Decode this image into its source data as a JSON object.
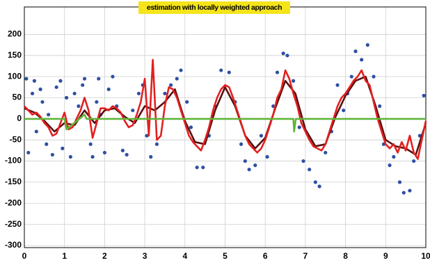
{
  "chart_data": {
    "type": "line",
    "title": "estimation with locally weighted approach",
    "xlim": [
      0,
      10
    ],
    "xticks": [
      0,
      1,
      2,
      3,
      4,
      5,
      6,
      7,
      8,
      9,
      10
    ],
    "ylim": [
      -305,
      265
    ],
    "yticks": [
      -300,
      -250,
      -200,
      -150,
      -100,
      -50,
      0,
      50,
      100,
      150,
      200
    ],
    "grid": true,
    "series": [
      {
        "mode": "markers",
        "color": "#2e4fa3",
        "x": [
          0.05,
          0.1,
          0.2,
          0.25,
          0.3,
          0.4,
          0.45,
          0.55,
          0.6,
          0.7,
          0.8,
          0.9,
          0.95,
          1.05,
          1.15,
          1.25,
          1.35,
          1.45,
          1.5,
          1.65,
          1.7,
          1.8,
          1.85,
          1.9,
          2.0,
          2.1,
          2.2,
          2.3,
          2.45,
          2.55,
          2.7,
          2.85,
          2.95,
          3.05,
          3.15,
          3.3,
          3.5,
          3.65,
          3.8,
          3.9,
          4.05,
          4.15,
          4.3,
          4.45,
          4.6,
          4.75,
          4.9,
          5.1,
          5.25,
          5.4,
          5.5,
          5.6,
          5.75,
          5.9,
          6.05,
          6.2,
          6.3,
          6.45,
          6.55,
          6.7,
          6.85,
          6.95,
          7.1,
          7.25,
          7.35,
          7.5,
          7.65,
          7.8,
          7.95,
          8.05,
          8.15,
          8.25,
          8.4,
          8.55,
          8.7,
          8.85,
          8.95,
          9.1,
          9.2,
          9.35,
          9.45,
          9.6,
          9.7,
          9.85,
          9.95
        ],
        "values": [
          95,
          -80,
          60,
          90,
          -30,
          70,
          40,
          -60,
          10,
          -85,
          75,
          90,
          -70,
          50,
          -90,
          60,
          30,
          80,
          95,
          -60,
          -90,
          40,
          95,
          10,
          -80,
          70,
          100,
          30,
          -75,
          -85,
          20,
          60,
          80,
          -40,
          -90,
          -60,
          60,
          80,
          95,
          115,
          40,
          -20,
          -115,
          -115,
          -40,
          30,
          115,
          110,
          40,
          -60,
          -100,
          -120,
          -110,
          -40,
          -90,
          30,
          110,
          155,
          150,
          90,
          -20,
          -100,
          -120,
          -150,
          -160,
          -80,
          -30,
          80,
          20,
          60,
          100,
          160,
          140,
          175,
          100,
          30,
          -60,
          -110,
          -90,
          -150,
          -175,
          -170,
          -100,
          -40,
          55
        ]
      },
      {
        "mode": "line",
        "color": "#5a1010",
        "x": [
          0,
          0.25,
          0.5,
          0.75,
          1,
          1.25,
          1.5,
          1.75,
          2,
          2.25,
          2.5,
          2.75,
          3,
          3.25,
          3.5,
          3.75,
          4,
          4.25,
          4.5,
          4.75,
          5,
          5.25,
          5.5,
          5.75,
          6,
          6.25,
          6.5,
          6.75,
          7,
          7.25,
          7.5,
          7.75,
          8,
          8.25,
          8.5,
          8.75,
          9,
          9.25,
          9.5,
          9.75,
          10
        ],
        "values": [
          25,
          15,
          -5,
          -30,
          -10,
          -15,
          20,
          -10,
          20,
          25,
          5,
          -10,
          30,
          20,
          40,
          70,
          -5,
          -55,
          -60,
          20,
          75,
          30,
          -40,
          -70,
          -45,
          25,
          90,
          60,
          -25,
          -65,
          -60,
          5,
          55,
          90,
          100,
          30,
          -50,
          -65,
          -70,
          -85,
          -10
        ]
      },
      {
        "mode": "line",
        "color": "#e32020",
        "x": [
          0,
          0.1,
          0.2,
          0.3,
          0.4,
          0.5,
          0.6,
          0.7,
          0.8,
          0.9,
          1,
          1.1,
          1.2,
          1.3,
          1.4,
          1.5,
          1.6,
          1.7,
          1.8,
          1.9,
          2,
          2.1,
          2.2,
          2.3,
          2.4,
          2.5,
          2.6,
          2.7,
          2.8,
          2.9,
          3,
          3.1,
          3.2,
          3.3,
          3.4,
          3.5,
          3.6,
          3.7,
          3.8,
          3.9,
          4,
          4.1,
          4.2,
          4.3,
          4.4,
          4.5,
          4.6,
          4.7,
          4.8,
          4.9,
          5,
          5.1,
          5.2,
          5.3,
          5.4,
          5.5,
          5.6,
          5.7,
          5.8,
          5.9,
          6,
          6.1,
          6.2,
          6.3,
          6.4,
          6.5,
          6.6,
          6.7,
          6.8,
          6.9,
          7,
          7.1,
          7.2,
          7.3,
          7.4,
          7.5,
          7.6,
          7.7,
          7.8,
          7.9,
          8,
          8.1,
          8.2,
          8.3,
          8.4,
          8.5,
          8.6,
          8.7,
          8.8,
          8.9,
          9,
          9.1,
          9.2,
          9.3,
          9.4,
          9.5,
          9.6,
          9.7,
          9.8,
          9.9,
          10
        ],
        "values": [
          30,
          20,
          10,
          15,
          5,
          -10,
          -20,
          -40,
          -35,
          -10,
          15,
          -25,
          -20,
          0,
          20,
          50,
          20,
          -45,
          -10,
          25,
          25,
          20,
          30,
          25,
          15,
          -5,
          -20,
          -15,
          10,
          40,
          95,
          -40,
          140,
          -50,
          -40,
          30,
          75,
          70,
          50,
          20,
          -10,
          -40,
          -55,
          -65,
          -75,
          -50,
          -20,
          20,
          50,
          70,
          80,
          75,
          50,
          20,
          -10,
          -40,
          -60,
          -70,
          -80,
          -70,
          -50,
          -20,
          10,
          50,
          70,
          115,
          95,
          60,
          30,
          -10,
          -30,
          -50,
          -65,
          -70,
          -75,
          -60,
          -30,
          0,
          30,
          50,
          60,
          75,
          90,
          100,
          115,
          90,
          80,
          40,
          0,
          -30,
          -60,
          -70,
          -60,
          -80,
          -55,
          -75,
          -40,
          -80,
          -95,
          -50,
          -5
        ]
      },
      {
        "mode": "line",
        "color": "#5fb53a",
        "x": [
          0,
          1,
          1.05,
          1.5,
          1.55,
          6.7,
          6.72,
          6.76,
          10
        ],
        "values": [
          0,
          0,
          -25,
          10,
          0,
          0,
          -30,
          0,
          0
        ]
      }
    ]
  }
}
